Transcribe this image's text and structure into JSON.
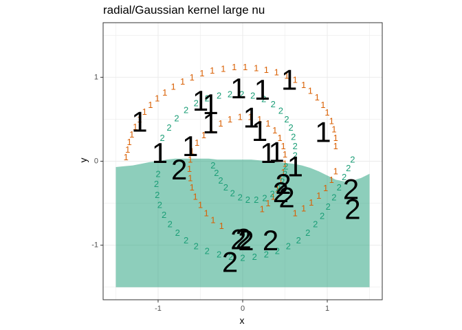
{
  "chart_data": {
    "type": "scatter",
    "title": "radial/Gaussian kernel large nu",
    "xlabel": "x",
    "ylabel": "y",
    "xlim": [
      -1.65,
      1.65
    ],
    "ylim": [
      -1.65,
      1.65
    ],
    "x_ticks": [
      -1,
      0,
      1
    ],
    "x_tick_labels": [
      "-1",
      "0",
      "1"
    ],
    "y_ticks": [
      -1,
      0,
      1
    ],
    "y_tick_labels": [
      "-1",
      "0",
      "1"
    ],
    "grid": true,
    "legend": "none",
    "colors": {
      "class1": "#d95f02",
      "class2": "#1b9e77",
      "region2": "#1b9e77",
      "support_vectors": "#000000",
      "panel_border": "#333333",
      "grid": "#ebebeb"
    },
    "series": [
      {
        "label": "1",
        "points": [
          [
            -1.38,
            0.05
          ],
          [
            -1.36,
            0.14
          ],
          [
            -1.34,
            0.23
          ],
          [
            -1.31,
            0.32
          ],
          [
            -1.27,
            0.41
          ],
          [
            -1.22,
            0.5
          ],
          [
            -1.16,
            0.59
          ],
          [
            -1.09,
            0.67
          ],
          [
            -1.01,
            0.75
          ],
          [
            -0.92,
            0.82
          ],
          [
            -0.82,
            0.89
          ],
          [
            -0.71,
            0.95
          ],
          [
            -0.6,
            1.0
          ],
          [
            -0.48,
            1.05
          ],
          [
            -0.36,
            1.08
          ],
          [
            -0.23,
            1.1
          ],
          [
            -0.1,
            1.12
          ],
          [
            0.03,
            1.12
          ],
          [
            0.16,
            1.11
          ],
          [
            0.28,
            1.09
          ],
          [
            0.4,
            1.06
          ],
          [
            0.52,
            1.02
          ],
          [
            0.62,
            0.97
          ],
          [
            0.72,
            0.91
          ],
          [
            0.8,
            0.84
          ],
          [
            0.88,
            0.76
          ],
          [
            0.95,
            0.67
          ],
          [
            1.0,
            0.58
          ],
          [
            1.05,
            0.48
          ],
          [
            1.08,
            0.38
          ],
          [
            1.1,
            0.28
          ],
          [
            1.1,
            0.18
          ],
          [
            -0.6,
            0.12
          ],
          [
            -0.54,
            0.22
          ],
          [
            -0.46,
            0.31
          ],
          [
            -0.37,
            0.39
          ],
          [
            -0.26,
            0.45
          ],
          [
            -0.15,
            0.5
          ],
          [
            -0.03,
            0.53
          ],
          [
            0.09,
            0.53
          ],
          [
            0.2,
            0.5
          ],
          [
            0.3,
            0.45
          ],
          [
            0.38,
            0.37
          ],
          [
            0.44,
            0.28
          ],
          [
            0.48,
            0.18
          ],
          [
            0.5,
            0.08
          ],
          [
            0.5,
            -0.03
          ],
          [
            0.48,
            -0.13
          ],
          [
            0.45,
            -0.23
          ],
          [
            0.41,
            -0.33
          ],
          [
            0.36,
            -0.42
          ],
          [
            0.3,
            -0.5
          ],
          [
            0.23,
            -0.57
          ],
          [
            -0.62,
            0.02
          ],
          [
            -0.63,
            -0.09
          ],
          [
            -0.62,
            -0.2
          ],
          [
            -0.6,
            -0.31
          ],
          [
            -0.56,
            -0.42
          ],
          [
            -0.5,
            -0.52
          ],
          [
            -0.43,
            -0.62
          ],
          [
            -0.35,
            -0.7
          ],
          [
            -0.25,
            -0.77
          ],
          [
            0.62,
            -0.62
          ],
          [
            0.72,
            -0.56
          ],
          [
            0.81,
            -0.49
          ],
          [
            0.9,
            -0.41
          ],
          [
            0.98,
            -0.32
          ],
          [
            1.05,
            -0.22
          ],
          [
            1.1,
            -0.12
          ]
        ]
      },
      {
        "label": "2",
        "points": [
          [
            -1.0,
            -0.15
          ],
          [
            -1.02,
            -0.27
          ],
          [
            -1.01,
            -0.4
          ],
          [
            -0.98,
            -0.52
          ],
          [
            -0.93,
            -0.64
          ],
          [
            -0.86,
            -0.75
          ],
          [
            -0.77,
            -0.85
          ],
          [
            -0.67,
            -0.94
          ],
          [
            -0.55,
            -1.01
          ],
          [
            -0.42,
            -1.07
          ],
          [
            -0.28,
            -1.11
          ],
          [
            -0.14,
            -1.14
          ],
          [
            0.0,
            -1.15
          ],
          [
            0.14,
            -1.14
          ],
          [
            0.28,
            -1.11
          ],
          [
            0.41,
            -1.07
          ],
          [
            0.54,
            -1.01
          ],
          [
            0.66,
            -0.94
          ],
          [
            0.77,
            -0.85
          ],
          [
            0.86,
            -0.75
          ],
          [
            0.94,
            -0.65
          ],
          [
            1.01,
            -0.54
          ],
          [
            1.08,
            -0.43
          ],
          [
            1.14,
            -0.31
          ],
          [
            1.2,
            -0.19
          ],
          [
            1.25,
            -0.08
          ],
          [
            1.3,
            0.02
          ],
          [
            -0.95,
            0.28
          ],
          [
            -0.87,
            0.4
          ],
          [
            -0.78,
            0.51
          ],
          [
            -0.67,
            0.61
          ],
          [
            -0.55,
            0.69
          ],
          [
            -0.42,
            0.75
          ],
          [
            -0.28,
            0.78
          ],
          [
            -0.15,
            0.8
          ],
          [
            -0.01,
            0.8
          ],
          [
            0.12,
            0.78
          ],
          [
            0.25,
            0.74
          ],
          [
            0.36,
            0.68
          ],
          [
            0.45,
            0.6
          ],
          [
            0.52,
            0.5
          ],
          [
            0.57,
            0.4
          ],
          [
            0.6,
            0.29
          ],
          [
            0.62,
            0.18
          ],
          [
            0.62,
            0.07
          ],
          [
            -0.35,
            -0.05
          ],
          [
            -0.31,
            -0.14
          ],
          [
            -0.26,
            -0.23
          ],
          [
            -0.2,
            -0.31
          ],
          [
            -0.12,
            -0.38
          ],
          [
            -0.03,
            -0.43
          ],
          [
            0.06,
            -0.46
          ],
          [
            0.16,
            -0.46
          ],
          [
            0.26,
            -0.44
          ],
          [
            0.35,
            -0.39
          ],
          [
            0.42,
            -0.32
          ],
          [
            0.47,
            -0.24
          ],
          [
            0.5,
            -0.15
          ],
          [
            0.51,
            -0.06
          ]
        ]
      }
    ],
    "support_vectors": [
      {
        "label": "1",
        "points": [
          [
            -1.22,
            0.47
          ],
          [
            -0.98,
            0.1
          ],
          [
            -0.62,
            0.18
          ],
          [
            -0.5,
            0.72
          ],
          [
            -0.38,
            0.68
          ],
          [
            -0.38,
            0.45
          ],
          [
            -0.05,
            0.87
          ],
          [
            0.1,
            0.52
          ],
          [
            0.2,
            0.36
          ],
          [
            0.23,
            0.85
          ],
          [
            0.3,
            0.1
          ],
          [
            0.4,
            0.11
          ],
          [
            0.55,
            0.97
          ],
          [
            0.62,
            -0.06
          ],
          [
            0.95,
            0.35
          ]
        ]
      },
      {
        "label": "2",
        "points": [
          [
            -0.75,
            -0.1
          ],
          [
            -0.05,
            -0.93
          ],
          [
            0.01,
            -0.92
          ],
          [
            0.04,
            -0.94
          ],
          [
            0.33,
            -0.94
          ],
          [
            0.45,
            -0.37
          ],
          [
            0.48,
            -0.27
          ],
          [
            0.52,
            -0.43
          ],
          [
            1.28,
            -0.33
          ],
          [
            1.3,
            -0.57
          ],
          [
            -0.15,
            -1.2
          ]
        ]
      }
    ],
    "decision_region": {
      "class": "2",
      "x_range": [
        -1.5,
        1.5
      ],
      "bottom": -1.5,
      "boundary_y": [
        -0.07,
        -0.06,
        -0.05,
        -0.03,
        -0.01,
        0.0,
        0.02,
        0.03,
        0.03,
        0.03,
        0.03,
        0.03,
        0.02,
        0.02,
        0.02,
        0.02,
        0.02,
        0.01,
        0.0,
        -0.01,
        -0.02,
        -0.03,
        -0.05,
        -0.08,
        -0.12,
        -0.17,
        -0.22,
        -0.24,
        -0.23,
        -0.2,
        -0.15
      ]
    }
  }
}
